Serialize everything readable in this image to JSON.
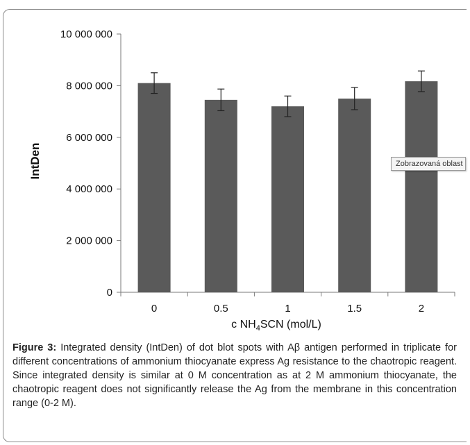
{
  "chart_data": {
    "type": "bar",
    "categories": [
      "0",
      "0.5",
      "1",
      "1.5",
      "2"
    ],
    "values": [
      8100000,
      7450000,
      7200000,
      7500000,
      8170000
    ],
    "errors": [
      400000,
      420000,
      400000,
      430000,
      400000
    ],
    "ylim": [
      0,
      10000000
    ],
    "yticks": [
      "0",
      "2 000 000",
      "4 000 000",
      "6 000 000",
      "8 000 000",
      "10 000 000"
    ],
    "ytick_values": [
      0,
      2000000,
      4000000,
      6000000,
      8000000,
      10000000
    ],
    "ylabel": "IntDen",
    "xlabel_prefix": "c NH",
    "xlabel_sub1": "4",
    "xlabel_suffix": "SCN (mol/L)",
    "bar_color": "#5a5a5a",
    "grid": false
  },
  "tooltip": {
    "text": "Zobrazovaná oblast grafu"
  },
  "caption": {
    "label": "Figure 3:",
    "text": " Integrated density (IntDen) of dot blot spots with Aβ antigen performed in triplicate for different concentrations of ammonium thiocyanate express Ag resistance to the chaotropic reagent. Since integrated density is similar at 0 M concentration as at 2 M ammonium thiocyanate, the chaotropic reagent does not significantly release the Ag from the membrane in this concentration range (0-2 M)."
  }
}
